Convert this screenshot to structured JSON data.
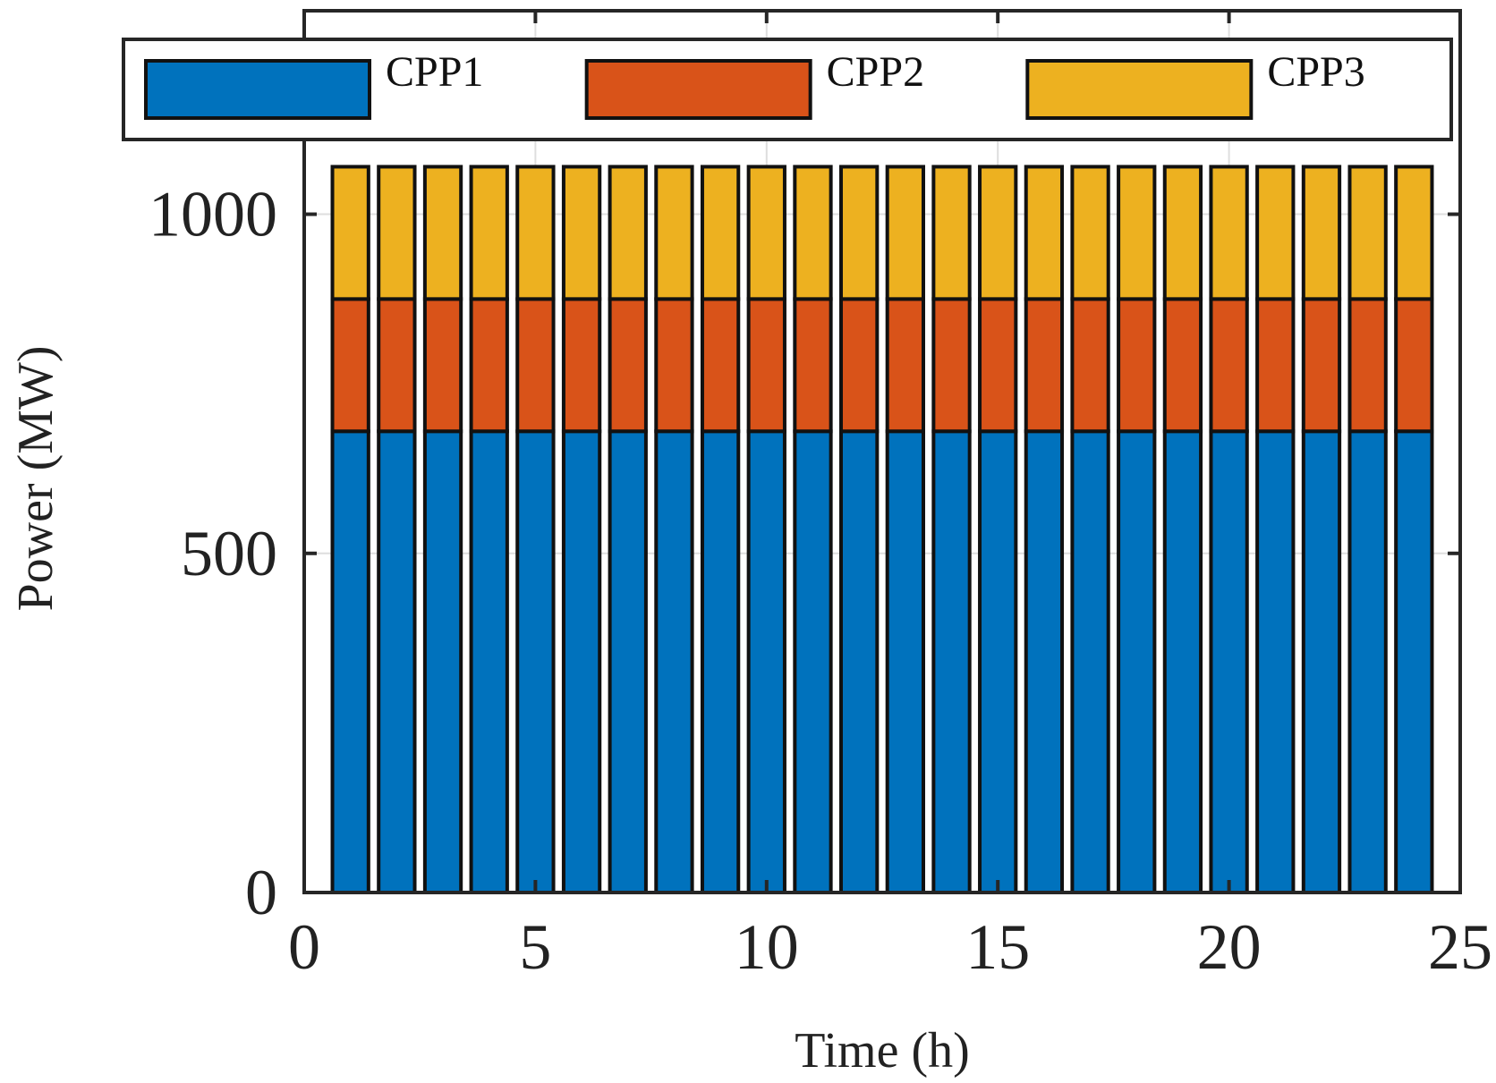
{
  "chart_data": {
    "type": "bar",
    "stacked": true,
    "title": "",
    "xlabel": "Time (h)",
    "ylabel": "Power (MW)",
    "xlim": [
      0,
      25
    ],
    "ylim": [
      0,
      1300
    ],
    "xticks": [
      0,
      5,
      10,
      15,
      20,
      25
    ],
    "yticks": [
      0,
      500,
      1000
    ],
    "grid": true,
    "legend_position": "top",
    "categories": [
      1,
      2,
      3,
      4,
      5,
      6,
      7,
      8,
      9,
      10,
      11,
      12,
      13,
      14,
      15,
      16,
      17,
      18,
      19,
      20,
      21,
      22,
      23,
      24
    ],
    "series": [
      {
        "name": "CPP1",
        "color": "#0072bd",
        "values": [
          680,
          680,
          680,
          680,
          680,
          680,
          680,
          680,
          680,
          680,
          680,
          680,
          680,
          680,
          680,
          680,
          680,
          680,
          680,
          680,
          680,
          680,
          680,
          680
        ]
      },
      {
        "name": "CPP2",
        "color": "#d95319",
        "values": [
          195,
          195,
          195,
          195,
          195,
          195,
          195,
          195,
          195,
          195,
          195,
          195,
          195,
          195,
          195,
          195,
          195,
          195,
          195,
          195,
          195,
          195,
          195,
          195
        ]
      },
      {
        "name": "CPP3",
        "color": "#edb120",
        "values": [
          195,
          195,
          195,
          195,
          195,
          195,
          195,
          195,
          195,
          195,
          195,
          195,
          195,
          195,
          195,
          195,
          195,
          195,
          195,
          195,
          195,
          195,
          195,
          195
        ]
      }
    ]
  }
}
